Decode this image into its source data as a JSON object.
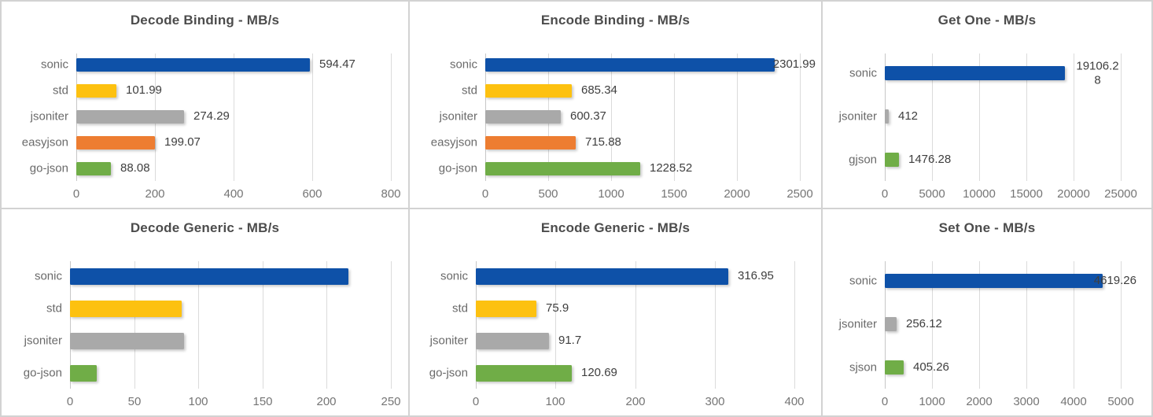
{
  "palette": {
    "sonic": "#0e51a8",
    "std": "#fdc110",
    "jsoniter": "#a9a9a9",
    "easyjson": "#ed7d31",
    "go-json": "#70ad47",
    "gjson": "#70ad47",
    "sjson": "#70ad47"
  },
  "colors": {
    "grid": "#dbdbdb",
    "zero_line": "#c7c7c7",
    "title_text": "#4c4c4c",
    "category_text": "#6a6a6a",
    "tick_text": "#757575",
    "value_text": "#3e3e3e",
    "panel_background": "#ffffff",
    "panel_border": "#d2d2d2"
  },
  "chart_data": [
    {
      "type": "bar",
      "orientation": "horizontal",
      "title": "Decode Binding - MB/s",
      "categories": [
        "sonic",
        "std",
        "jsoniter",
        "easyjson",
        "go-json"
      ],
      "values": [
        594.47,
        101.99,
        274.29,
        199.07,
        88.08
      ],
      "value_labels": [
        "594.47",
        "101.99",
        "274.29",
        "199.07",
        "88.08"
      ],
      "value_labels_shown": true,
      "xlim": [
        0,
        800
      ],
      "xticks": [
        0,
        200,
        400,
        600,
        800
      ],
      "grid": true,
      "legend": false
    },
    {
      "type": "bar",
      "orientation": "horizontal",
      "title": "Encode Binding - MB/s",
      "categories": [
        "sonic",
        "std",
        "jsoniter",
        "easyjson",
        "go-json"
      ],
      "values": [
        2301.99,
        685.34,
        600.37,
        715.88,
        1228.52
      ],
      "value_labels": [
        "2301.99",
        "685.34",
        "600.37",
        "715.88",
        "1228.52"
      ],
      "value_labels_shown": true,
      "xlim": [
        0,
        2500
      ],
      "xticks": [
        0,
        500,
        1000,
        1500,
        2000,
        2500
      ],
      "grid": true,
      "legend": false
    },
    {
      "type": "bar",
      "orientation": "horizontal",
      "title": "Get One - MB/s",
      "categories": [
        "sonic",
        "jsoniter",
        "gjson"
      ],
      "values": [
        19106.28,
        412,
        1476.28
      ],
      "value_labels": [
        "19106.28",
        "412",
        "1476.28"
      ],
      "value_labels_shown": true,
      "xlim": [
        0,
        25000
      ],
      "xticks": [
        0,
        5000,
        10000,
        15000,
        20000,
        25000
      ],
      "grid": true,
      "legend": false
    },
    {
      "type": "bar",
      "orientation": "horizontal",
      "title": "Decode Generic - MB/s",
      "categories": [
        "sonic",
        "std",
        "jsoniter",
        "go-json"
      ],
      "values": [
        217,
        87,
        89,
        21
      ],
      "value_labels": null,
      "value_labels_shown": false,
      "xlim": [
        0,
        250
      ],
      "xticks": [
        0,
        50,
        100,
        150,
        200,
        250
      ],
      "grid": true,
      "legend": false
    },
    {
      "type": "bar",
      "orientation": "horizontal",
      "title": "Encode Generic - MB/s",
      "categories": [
        "sonic",
        "std",
        "jsoniter",
        "go-json"
      ],
      "values": [
        316.95,
        75.9,
        91.7,
        120.69
      ],
      "value_labels": [
        "316.95",
        "75.9",
        "91.7",
        "120.69"
      ],
      "value_labels_shown": true,
      "xlim": [
        0,
        400
      ],
      "xticks": [
        0,
        100,
        200,
        300,
        400
      ],
      "grid": true,
      "legend": false
    },
    {
      "type": "bar",
      "orientation": "horizontal",
      "title": "Set One - MB/s",
      "categories": [
        "sonic",
        "jsoniter",
        "sjson"
      ],
      "values": [
        4619.26,
        256.12,
        405.26
      ],
      "value_labels": [
        "4619.26",
        "256.12",
        "405.26"
      ],
      "value_labels_shown": true,
      "xlim": [
        0,
        5000
      ],
      "xticks": [
        0,
        1000,
        2000,
        3000,
        4000,
        5000
      ],
      "grid": true,
      "legend": false
    }
  ]
}
